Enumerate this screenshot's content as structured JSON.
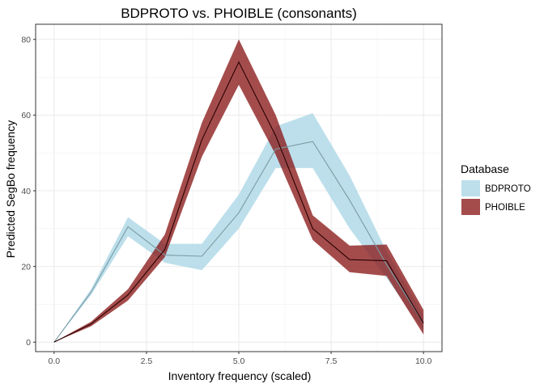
{
  "chart_data": {
    "type": "line",
    "title": "BDPROTO vs. PHOIBLE (consonants)",
    "xlabel": "Inventory frequency (scaled)",
    "ylabel": "Predicted SegBo frequency",
    "xlim": [
      -0.5,
      10.5
    ],
    "ylim": [
      -2.5,
      84
    ],
    "x_ticks": [
      0,
      2.5,
      5,
      7.5,
      10
    ],
    "x_tick_labels": [
      "0.0",
      "2.5",
      "5.0",
      "7.5",
      "10.0"
    ],
    "y_ticks": [
      0,
      20,
      40,
      60,
      80
    ],
    "y_tick_labels": [
      "0",
      "20",
      "40",
      "60",
      "80"
    ],
    "grid": true,
    "legend": {
      "title": "Database",
      "position": "right"
    },
    "series": [
      {
        "name": "BDPROTO",
        "fill_color": "#add8e6",
        "line_color": "#7a9ba5",
        "x": [
          0,
          1,
          2,
          3,
          4,
          5,
          6,
          7,
          8,
          9,
          10
        ],
        "y": [
          0,
          13.2,
          30.5,
          23.0,
          22.7,
          34.2,
          51.0,
          53.0,
          37.5,
          20.5,
          5.0
        ],
        "lower": [
          0,
          12.5,
          28.0,
          21.0,
          19.0,
          30.0,
          46.0,
          46.0,
          30.0,
          17.0,
          3.0
        ],
        "upper": [
          0,
          14.0,
          33.0,
          26.0,
          26.0,
          39.0,
          57.0,
          60.5,
          44.0,
          24.0,
          7.0
        ]
      },
      {
        "name": "PHOIBLE",
        "fill_color": "#8b1a1a",
        "line_color": "#2a0000",
        "x": [
          0,
          1,
          2,
          3,
          4,
          5,
          6,
          7,
          8,
          9,
          10
        ],
        "y": [
          0,
          4.8,
          12.5,
          24.5,
          53.5,
          74.0,
          54.5,
          30.0,
          21.8,
          21.5,
          5.0
        ],
        "lower": [
          0,
          4.2,
          11.0,
          22.5,
          49.0,
          68.0,
          49.5,
          27.0,
          18.5,
          17.5,
          2.0
        ],
        "upper": [
          0,
          5.4,
          14.0,
          28.5,
          58.0,
          80.0,
          60.0,
          33.5,
          25.5,
          25.8,
          8.5
        ]
      }
    ]
  }
}
